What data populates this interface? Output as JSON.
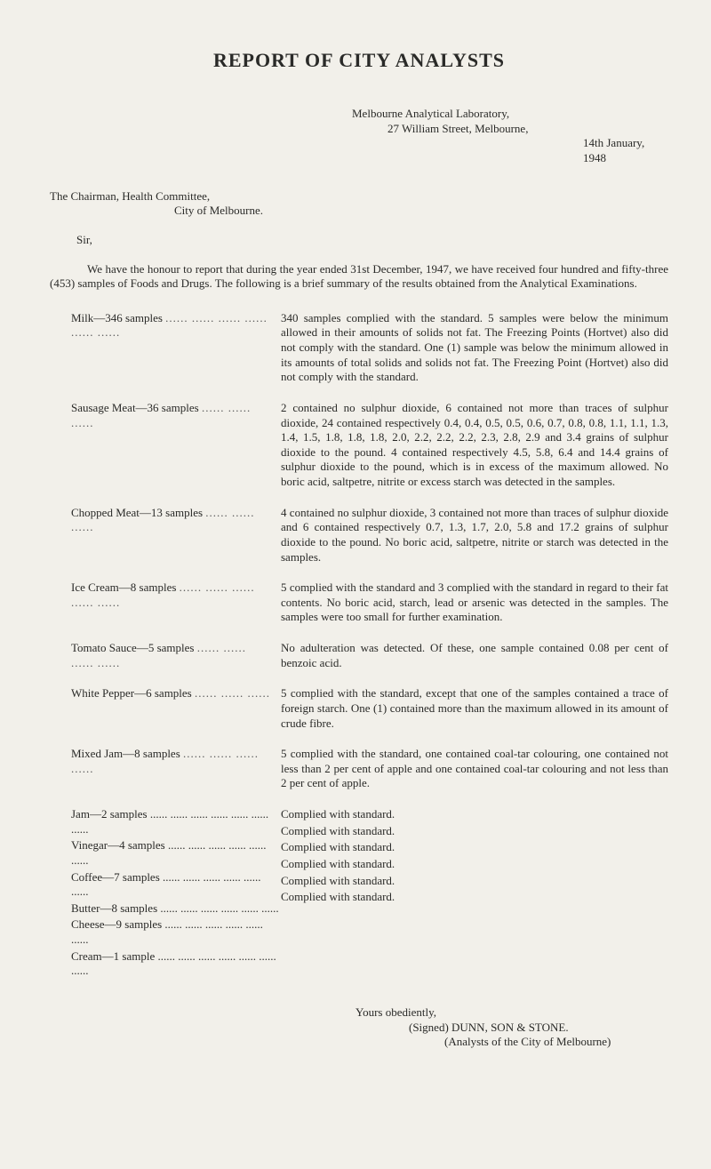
{
  "title": "REPORT  OF  CITY  ANALYSTS",
  "lab": {
    "line1": "Melbourne Analytical Laboratory,",
    "line2": "27 William Street, Melbourne,",
    "line3": "14th January, 1948"
  },
  "address": {
    "line1": "The Chairman, Health Committee,",
    "line2": "City of Melbourne."
  },
  "sir": "Sir,",
  "intro": "We have the honour to report that during the year ended 31st December, 1947, we have received four hundred and fifty-three (453) samples of Foods and Drugs.     The following is a brief summary of the results obtained from the Analytical Examinations.",
  "entries": [
    {
      "label": "Milk—346 samples",
      "dots": "...... ...... ...... ...... ...... ......",
      "text": "340 samples complied with the standard. 5 samples were below the minimum allowed in their amounts of solids not fat. The Freezing Points (Hortvet) also did not comply with the standard. One (1) sample was below the minimum allowed in its amounts of total solids and solids not fat. The Freezing Point (Hortvet) also did not comply with the standard."
    },
    {
      "label": "Sausage Meat—36 samples",
      "dots": "...... ...... ......",
      "text": "2 contained no sulphur dioxide, 6 contained not more than traces of sulphur dioxide, 24 contained respectively 0.4, 0.4, 0.5, 0.5, 0.6, 0.7, 0.8, 0.8, 1.1, 1.1, 1.3, 1.4, 1.5, 1.8, 1.8, 1.8, 2.0, 2.2, 2.2, 2.2, 2.3, 2.8, 2.9 and 3.4 grains of sulphur dioxide to the pound. 4 contained respectively 4.5, 5.8, 6.4 and 14.4 grains of sulphur dioxide to the pound, which is in excess of the maximum allowed. No boric acid, saltpetre, nitrite or excess starch was detected in the samples."
    },
    {
      "label": "Chopped Meat—13 samples",
      "dots": "...... ...... ......",
      "text": "4 contained no sulphur dioxide, 3 contained not more than traces of sulphur dioxide and 6 contained respectively 0.7, 1.3, 1.7, 2.0, 5.8 and 17.2 grains of sulphur dioxide to the pound. No boric acid, saltpetre, nitrite or starch was detected in the samples."
    },
    {
      "label": "Ice Cream—8 samples",
      "dots": "...... ...... ...... ...... ......",
      "text": "5 complied with the standard and 3 complied with the standard in regard to their fat contents. No boric acid, starch, lead or arsenic was detected in the samples. The samples were too small for further examination."
    },
    {
      "label": "Tomato Sauce—5 samples",
      "dots": "...... ...... ...... ......",
      "text": "No adulteration was detected.   Of these, one sample contained 0.08 per cent of benzoic acid."
    },
    {
      "label": "White Pepper—6 samples",
      "dots": "...... ...... ......",
      "text": "5 complied with the standard, except that one of the samples contained a trace of foreign starch. One (1) contained more than the maximum allowed in its amount of crude fibre."
    },
    {
      "label": "Mixed Jam—8 samples",
      "dots": "...... ...... ...... ......",
      "text": "5 complied with the standard, one contained coal-tar colouring, one contained not less than 2 per cent of apple and one contained coal-tar colouring and not less than 2 per cent of apple."
    }
  ],
  "simple": [
    {
      "label": "Jam—2 samples ...... ...... ...... ...... ...... ...... ......",
      "text": "Complied with standard."
    },
    {
      "label": "Vinegar—4 samples ...... ...... ...... ...... ...... ......",
      "text": "Complied with standard."
    },
    {
      "label": "Coffee—7 samples ...... ...... ...... ...... ...... ......",
      "text": "Complied with standard."
    },
    {
      "label": "Butter—8 samples ...... ...... ...... ...... ...... ......",
      "text": "Complied with standard."
    },
    {
      "label": "Cheese—9 samples ...... ...... ...... ...... ...... ......",
      "text": "Complied with standard."
    },
    {
      "label": "Cream—1 sample ...... ...... ...... ...... ...... ...... ......",
      "text": "Complied with standard."
    }
  ],
  "signoff": {
    "l1": "Yours obediently,",
    "l2": "(Signed) DUNN, SON & STONE.",
    "l3": "(Analysts of the City of Melbourne)"
  }
}
